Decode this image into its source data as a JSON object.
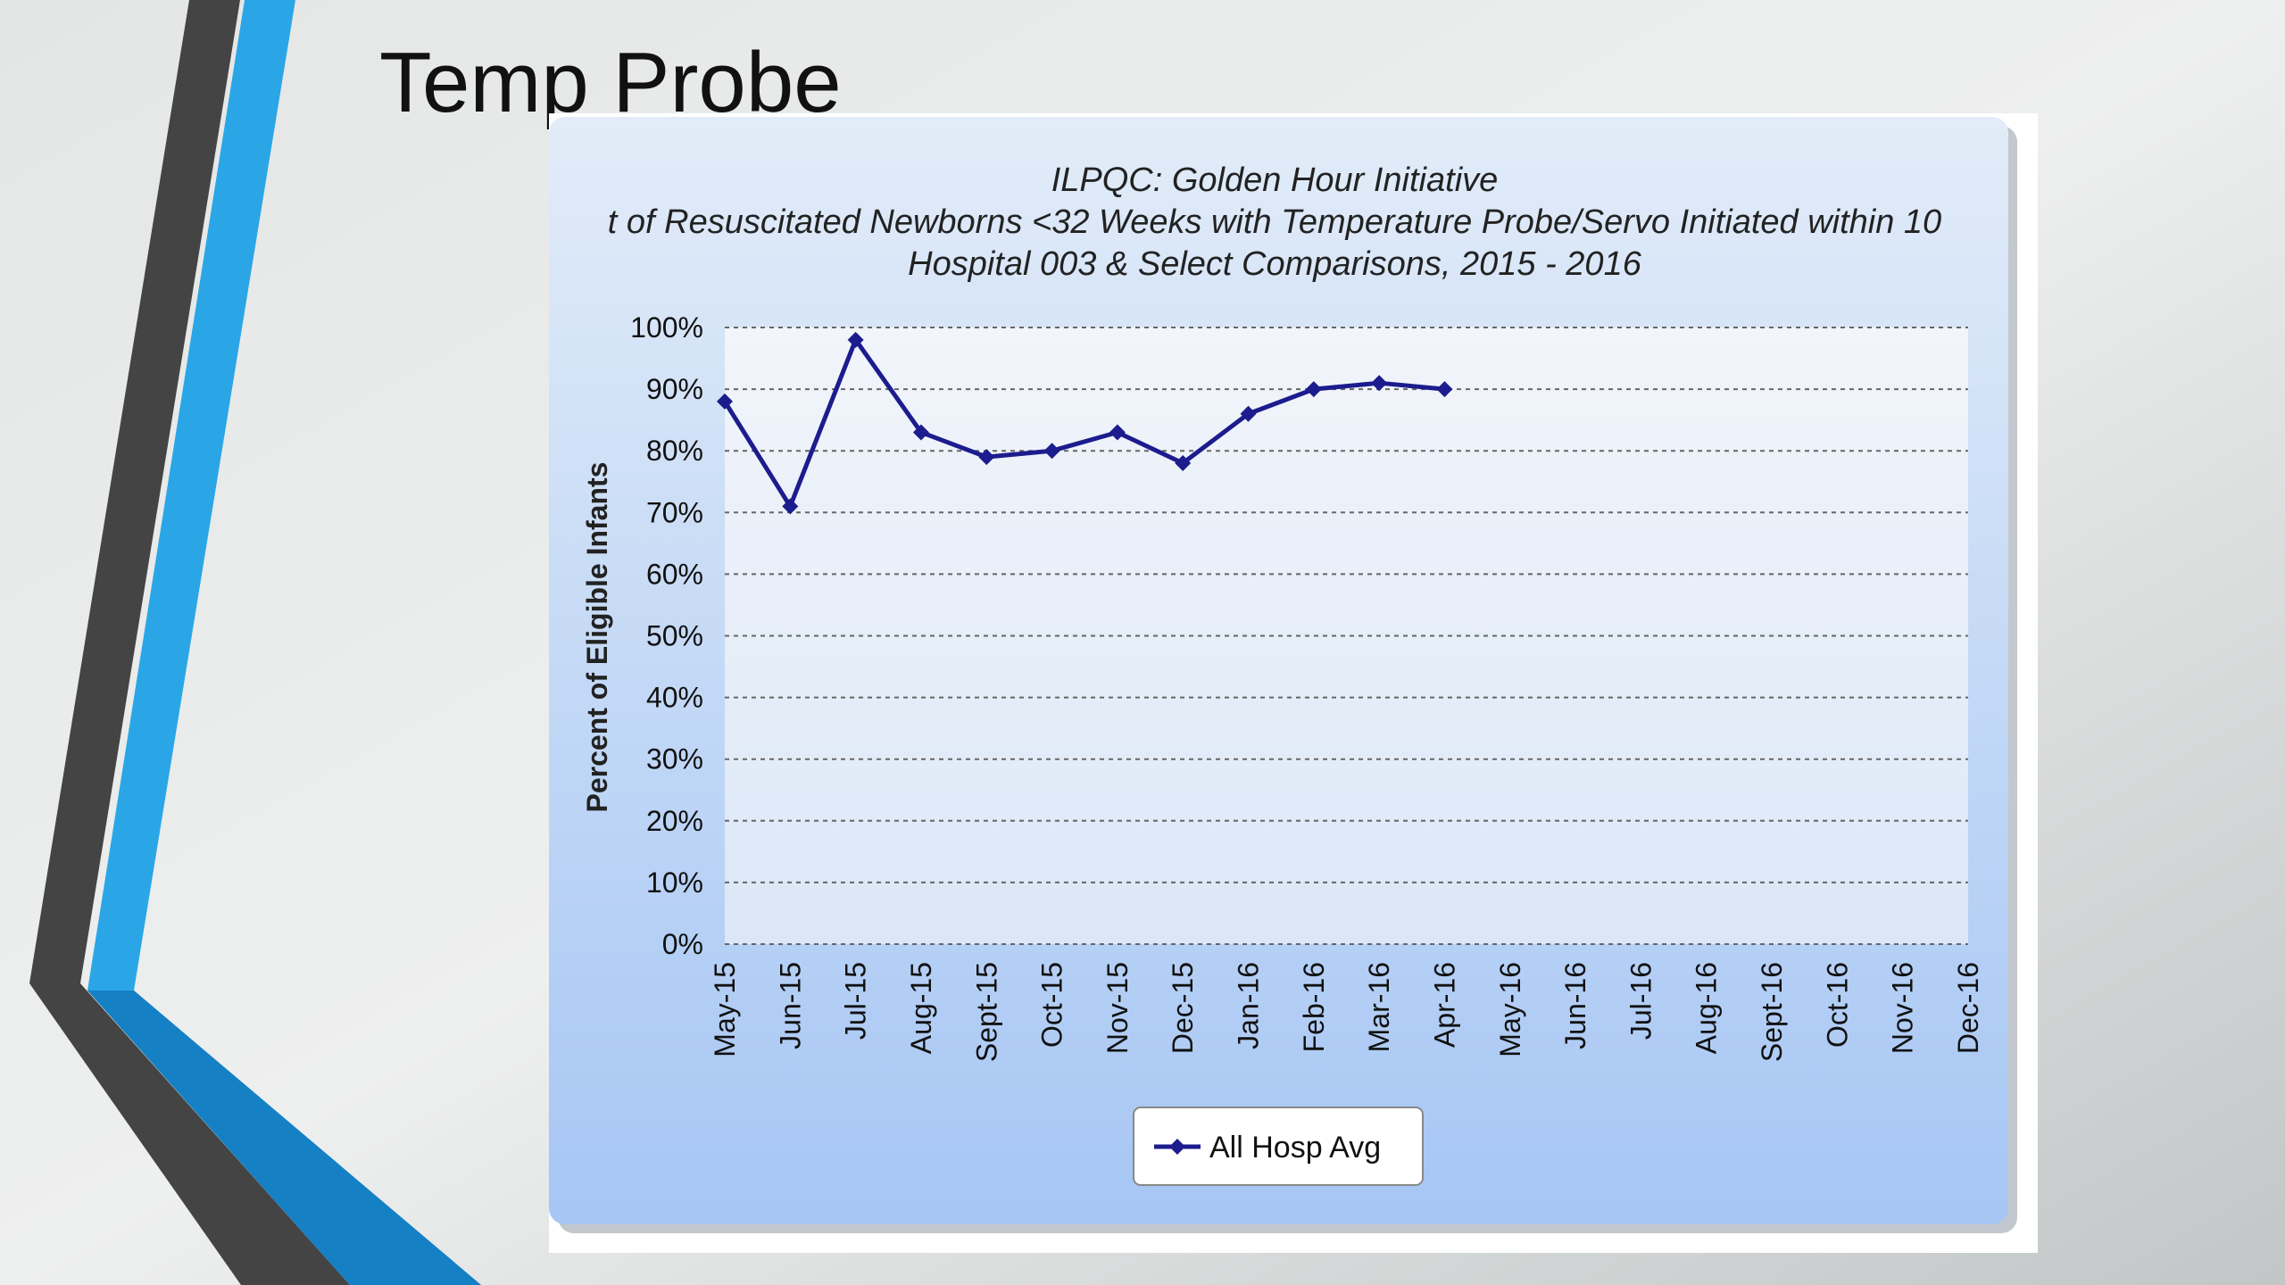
{
  "slide_title": "Temp Probe",
  "chart_data": {
    "type": "line",
    "title": "ILPQC: Golden Hour Initiative",
    "subtitle": "t of Resuscitated Newborns <32 Weeks with Temperature Probe/Servo Initiated within 10",
    "subtitle2": "Hospital 003 & Select Comparisons, 2015 - 2016",
    "y_label": "Percent of Eligible Infants",
    "categories": [
      "May-15",
      "Jun-15",
      "Jul-15",
      "Aug-15",
      "Sept-15",
      "Oct-15",
      "Nov-15",
      "Dec-15",
      "Jan-16",
      "Feb-16",
      "Mar-16",
      "Apr-16",
      "May-16",
      "Jun-16",
      "Jul-16",
      "Aug-16",
      "Sept-16",
      "Oct-16",
      "Nov-16",
      "Dec-16"
    ],
    "series": [
      {
        "name": "All Hosp Avg",
        "color": "#1c1c8e",
        "values": [
          88,
          71,
          98,
          83,
          79,
          80,
          83,
          78,
          86,
          90,
          91,
          90,
          null,
          null,
          null,
          null,
          null,
          null,
          null,
          null
        ]
      }
    ],
    "ylim": [
      0,
      100
    ],
    "yticks": [
      {
        "value": 0,
        "label": "0%"
      },
      {
        "value": 10,
        "label": "10%"
      },
      {
        "value": 20,
        "label": "20%"
      },
      {
        "value": 30,
        "label": "30%"
      },
      {
        "value": 40,
        "label": "40%"
      },
      {
        "value": 50,
        "label": "50%"
      },
      {
        "value": 60,
        "label": "60%"
      },
      {
        "value": 70,
        "label": "70%"
      },
      {
        "value": 80,
        "label": "80%"
      },
      {
        "value": 90,
        "label": "90%"
      },
      {
        "value": 100,
        "label": "100%"
      }
    ],
    "grid": true,
    "legend": "bottom"
  }
}
